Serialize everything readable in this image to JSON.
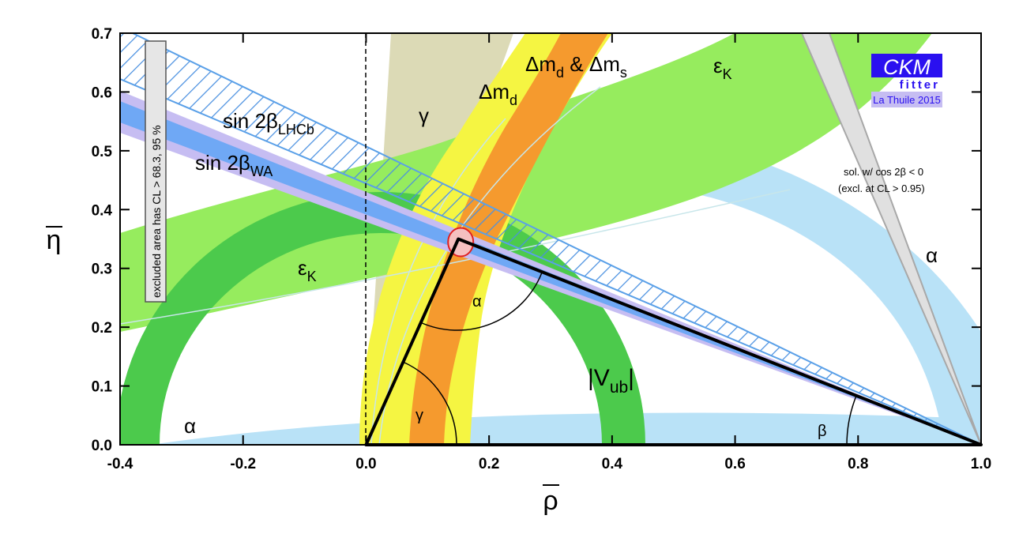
{
  "chart_data": {
    "type": "line",
    "x_label": "ρ",
    "y_label": "η",
    "x": [
      0.0,
      0.15,
      1.0
    ],
    "values": [
      0.0,
      0.35,
      0.0
    ],
    "color": "#000000",
    "xlim": [
      -0.4,
      1.0
    ],
    "ylim": [
      0.0,
      0.7
    ],
    "xticks": [
      -0.4,
      -0.2,
      {
        "value": 0.0,
        "label": "0.0"
      },
      0.2,
      0.4,
      0.6,
      0.8,
      {
        "value": 1.0,
        "label": "1.0"
      }
    ],
    "yticks": [
      {
        "value": 0.0,
        "label": "0.0"
      },
      0.1,
      0.2,
      0.3,
      0.4,
      0.5,
      0.6,
      0.7
    ],
    "annotations": [
      [
        "γ"
      ],
      [
        "Δm",
        "d"
      ],
      [
        "Δm",
        "d",
        " & Δm",
        "s"
      ],
      [
        "ε",
        "K"
      ],
      [
        "sin 2β",
        "LHCb"
      ],
      [
        "sin 2β",
        "WA"
      ],
      [
        "ε",
        "K"
      ],
      [
        "α"
      ],
      [
        "γ"
      ],
      [
        "|V",
        "ub",
        "|"
      ],
      [
        "β"
      ],
      [
        "α"
      ],
      [
        "α"
      ],
      [
        "sol. w/ cos 2β < 0"
      ],
      [
        "(excl. at CL > 0.95)"
      ]
    ],
    "excluded_note": "excluded area has CL > 68.3, 95 %",
    "logo": {
      "title": "CKM",
      "subtitle": "fitter",
      "event": "La Thuile 2015"
    }
  }
}
